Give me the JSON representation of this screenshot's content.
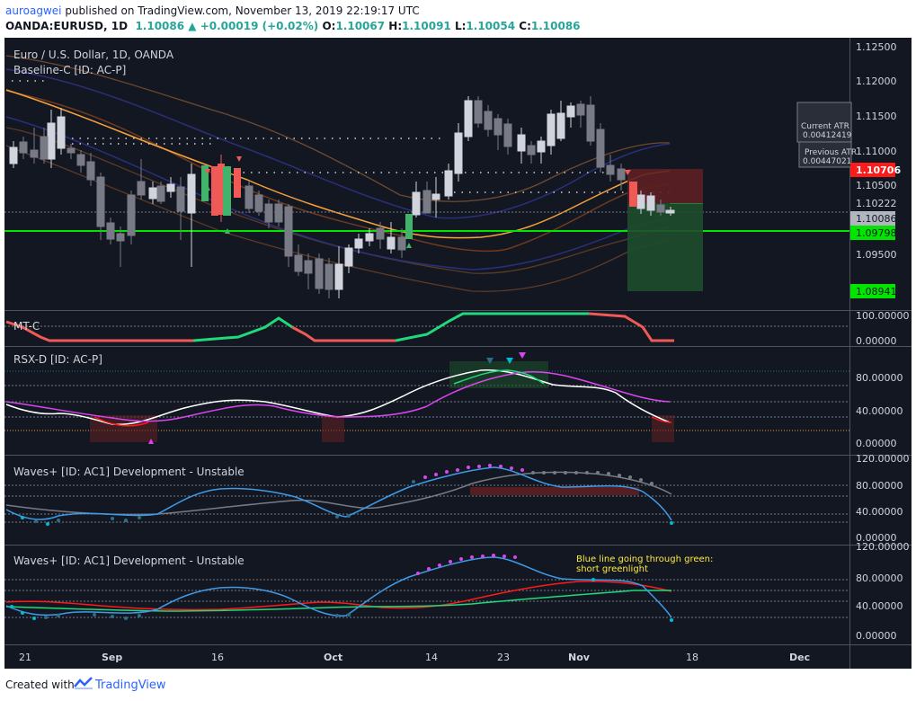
{
  "header": {
    "author": "auroagwei",
    "published": "published on TradingView.com, November 13, 2019 22:19:17 UTC",
    "symbol": "OANDA:EURUSD, 1D",
    "last": "1.10086",
    "change": "+0.00019 (+0.02%)",
    "o_label": "O:",
    "o_value": "1.10067",
    "h_label": "H:",
    "h_value": "1.10091",
    "l_label": "L:",
    "l_value": "1.10054",
    "c_label": "C:",
    "c_value": "1.10086"
  },
  "main_pane": {
    "title": "Euro / U.S. Dollar, 1D, OANDA",
    "indicator": "Baseline-C [ID: AC-P]",
    "atr_current_label": "Current ATR",
    "atr_current_value": "0.00412419",
    "atr_previous_label": "Previous ATR",
    "atr_previous_value": "0.00447021",
    "price_ticks": [
      "1.12500",
      "1.12000",
      "1.11500",
      "1.11000",
      "1.10500",
      "1.09500"
    ],
    "price_labels": {
      "red_level": "1.10706",
      "entry_level": "1.10222",
      "last_price": "1.10086",
      "baseline_level": "1.09798",
      "target_level": "1.08941"
    },
    "colors": {
      "up": "#d1d4dc",
      "down": "#787b86",
      "baseline_green": "#00e600",
      "sell_red": "#ff1a1a"
    }
  },
  "mtc_pane": {
    "title": "MT-C",
    "ticks": [
      "100.00000",
      "0.00000"
    ]
  },
  "rsx_pane": {
    "title": "RSX-D [ID: AC-P]",
    "ticks": [
      "80.00000",
      "40.00000",
      "0.00000"
    ]
  },
  "waves1_pane": {
    "title": "Waves+ [ID: AC1] Development - Unstable",
    "ticks": [
      "120.00000",
      "80.00000",
      "40.00000",
      "0.00000"
    ]
  },
  "waves2_pane": {
    "title": "Waves+ [ID: AC1] Development - Unstable",
    "ticks": [
      "120.00000",
      "80.00000",
      "40.00000",
      "0.00000"
    ],
    "annotation_line1": "Blue line going through green:",
    "annotation_line2": "short greenlight"
  },
  "time_axis": {
    "labels": [
      "21",
      "Sep",
      "16",
      "Oct",
      "14",
      "23",
      "Nov",
      "18",
      "Dec"
    ]
  },
  "footer": {
    "created_with": "Created with",
    "brand": "TradingView"
  }
}
